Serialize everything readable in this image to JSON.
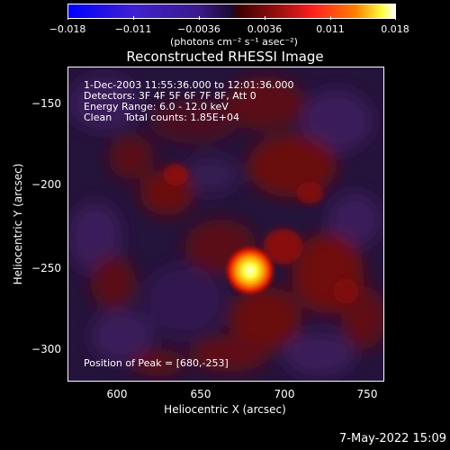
{
  "colorbar": {
    "ticks": [
      "−0.018",
      "−0.011",
      "−0.0036",
      "0.0036",
      "0.011",
      "0.018"
    ],
    "units": "(photons cm⁻² s⁻¹ asec⁻²)"
  },
  "title": "Reconstructed RHESSI Image",
  "info": {
    "time_range": "1-Dec-2003 11:55:36.000 to 12:01:36.000",
    "detectors": "Detectors: 3F 4F 5F 6F 7F 8F, Att 0",
    "energy": "Energy Range: 6.0 - 12.0 keV",
    "clean": "Clean    Total counts: 1.85E+04",
    "peak": "Position of Peak = [680,-253]"
  },
  "axes": {
    "xlabel": "Heliocentric X (arcsec)",
    "ylabel": "Heliocentric Y (arcsec)",
    "xticks": [
      "600",
      "650",
      "700",
      "750"
    ],
    "yticks": [
      "−150",
      "−200",
      "−250",
      "−300"
    ]
  },
  "timestamp": "7-May-2022 15:09"
}
